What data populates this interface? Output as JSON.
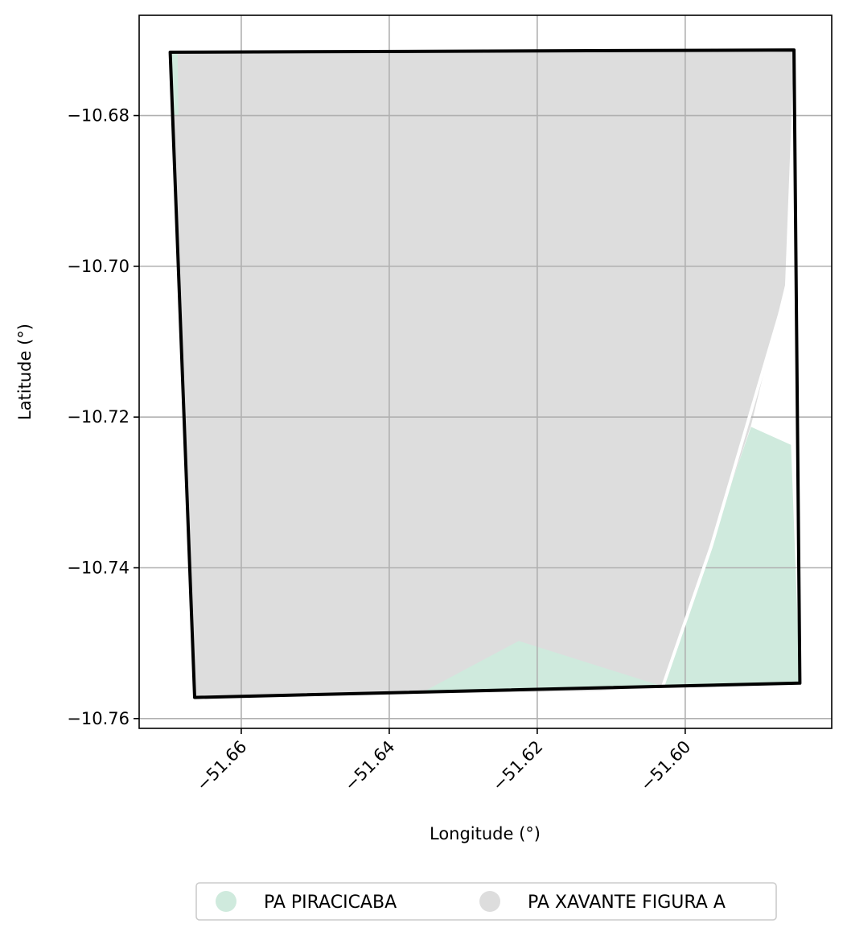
{
  "map": {
    "xlabel": "Longitude (°)",
    "ylabel": "Latitude (°)",
    "xlim": [
      -51.6738,
      -51.5802
    ],
    "ylim": [
      -10.7613,
      -10.6667
    ],
    "grid": true,
    "x_ticks": [
      {
        "value": -51.66,
        "label": "−51.66"
      },
      {
        "value": -51.64,
        "label": "−51.64"
      },
      {
        "value": -51.62,
        "label": "−51.62"
      },
      {
        "value": -51.6,
        "label": "−51.60"
      }
    ],
    "y_ticks": [
      {
        "value": -10.68,
        "label": "−10.68"
      },
      {
        "value": -10.7,
        "label": "−10.70"
      },
      {
        "value": -10.72,
        "label": "−10.72"
      },
      {
        "value": -10.74,
        "label": "−10.74"
      },
      {
        "value": -10.76,
        "label": "−10.76"
      }
    ],
    "layers": [
      {
        "name": "PA XAVANTE FIGURA A",
        "color": "#dddddd",
        "polygons": [
          [
            [
              -51.6696,
              -10.6716
            ],
            [
              -51.5853,
              -10.6713
            ],
            [
              -51.5865,
              -10.7025
            ],
            [
              -51.5911,
              -10.7211
            ],
            [
              -51.6029,
              -10.7557
            ],
            [
              -51.6115,
              -10.7563
            ],
            [
              -51.6663,
              -10.7572
            ]
          ]
        ]
      },
      {
        "name": "PA PIRACICABA",
        "color": "#cfeadd",
        "polygons": [
          [
            [
              -51.5911,
              -10.7213
            ],
            [
              -51.5857,
              -10.7237
            ],
            [
              -51.5845,
              -10.7553
            ],
            [
              -51.6029,
              -10.7559
            ],
            [
              -51.5968,
              -10.7375
            ]
          ],
          [
            [
              -51.6357,
              -10.7566
            ],
            [
              -51.6225,
              -10.7497
            ],
            [
              -51.6028,
              -10.7558
            ]
          ],
          [
            [
              -51.6697,
              -10.6718
            ],
            [
              -51.6686,
              -10.6718
            ],
            [
              -51.6685,
              -10.68
            ],
            [
              -51.6694,
              -10.68
            ]
          ]
        ]
      }
    ],
    "road": {
      "color": "#ffffff",
      "line": [
        [
          -51.5862,
          -10.7029
        ],
        [
          -51.5965,
          -10.7372
        ],
        [
          -51.6033,
          -10.7565
        ]
      ]
    },
    "boundary": {
      "color": "#000000",
      "polygon": [
        [
          -51.6696,
          -10.6716
        ],
        [
          -51.5853,
          -10.6713
        ],
        [
          -51.5845,
          -10.7553
        ],
        [
          -51.6663,
          -10.7572
        ]
      ]
    },
    "legend": {
      "placement": "bottom-center, below plot",
      "items": [
        {
          "label": "PA PIRACICABA",
          "color": "#cfeadd"
        },
        {
          "label": "PA XAVANTE FIGURA A",
          "color": "#dddddd"
        }
      ]
    }
  }
}
